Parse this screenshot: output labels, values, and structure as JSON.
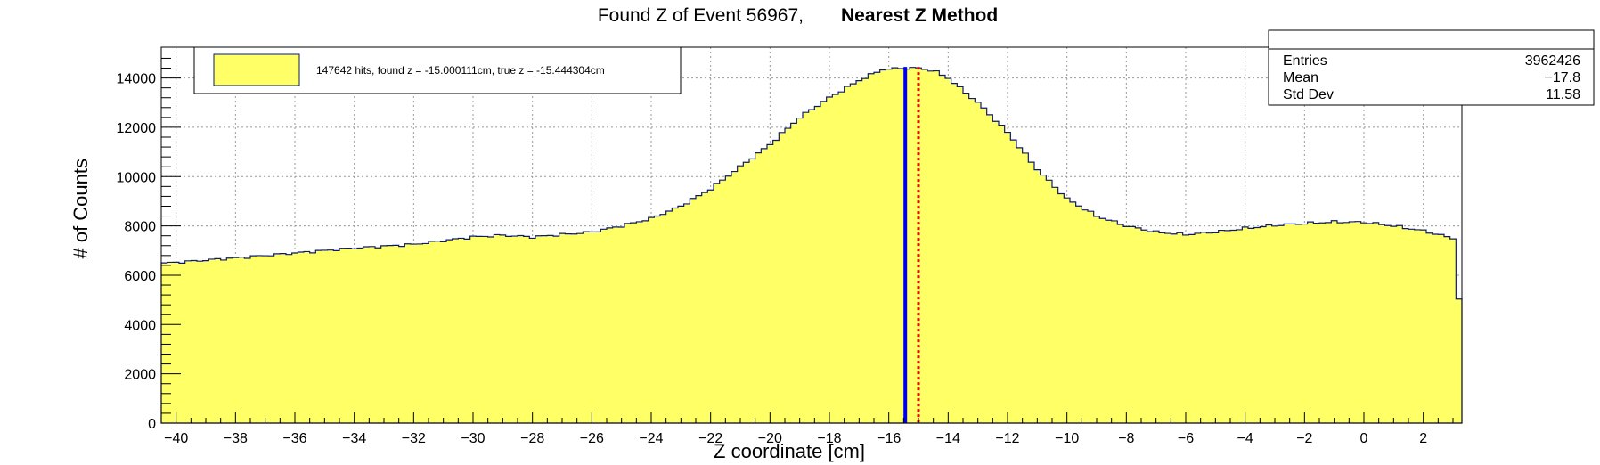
{
  "chart_data": {
    "type": "histogram",
    "title": "Found Z of Event 56967,",
    "title_bold": "Nearest Z Method",
    "xlabel": "Z coordinate [cm]",
    "ylabel": "# of Counts",
    "xlim": [
      -40.5,
      3.3
    ],
    "ylim": [
      0,
      15250
    ],
    "x_ticks": [
      -40,
      -38,
      -36,
      -34,
      -32,
      -30,
      -28,
      -26,
      -24,
      -22,
      -20,
      -18,
      -16,
      -14,
      -12,
      -10,
      -8,
      -6,
      -4,
      -2,
      0,
      2
    ],
    "y_ticks": [
      0,
      2000,
      4000,
      6000,
      8000,
      10000,
      12000,
      14000
    ],
    "grid": true,
    "fill_color": "#ffff66",
    "line_color": "#0b1a6e",
    "legend": {
      "position": "top-left",
      "entry": "147642 hits, found z = -15.000111cm, true z = -15.444304cm"
    },
    "stats": {
      "position": "top-right",
      "rows": [
        {
          "label": "Entries",
          "value": "3962426"
        },
        {
          "label": "Mean",
          "value": "−17.8"
        },
        {
          "label": "Std Dev",
          "value": "11.58"
        }
      ]
    },
    "markers": [
      {
        "name": "true z",
        "x": -15.444304,
        "color": "#0000ee",
        "style": "solid"
      },
      {
        "name": "found z",
        "x": -15.000111,
        "color": "#ee0000",
        "style": "dotted"
      }
    ],
    "profile": {
      "x": [
        -40.5,
        -40.4,
        -40,
        -38,
        -36,
        -34,
        -32,
        -30,
        -29,
        -28,
        -27,
        -26,
        -25,
        -24,
        -23,
        -22,
        -21,
        -20,
        -19,
        -18,
        -17,
        -16.2,
        -15.5,
        -15,
        -14.5,
        -14,
        -13,
        -12,
        -11,
        -10,
        -9,
        -8,
        -7,
        -6,
        -5,
        -4,
        -3,
        -2,
        -1,
        0,
        1,
        2,
        3,
        3.3
      ],
      "y": [
        3400,
        6500,
        6520,
        6700,
        6900,
        7100,
        7250,
        7550,
        7620,
        7550,
        7650,
        7750,
        8000,
        8300,
        8800,
        9500,
        10400,
        11300,
        12400,
        13200,
        13900,
        14350,
        14400,
        14400,
        14300,
        14000,
        13000,
        11800,
        10300,
        9100,
        8400,
        8000,
        7750,
        7650,
        7750,
        7900,
        8020,
        8100,
        8160,
        8150,
        8000,
        7800,
        7500,
        3800
      ]
    }
  }
}
